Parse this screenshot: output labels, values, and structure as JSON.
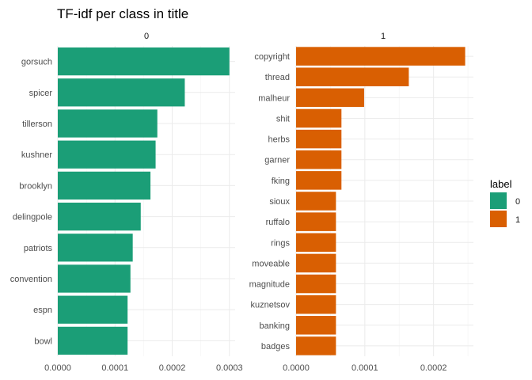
{
  "chart_data": {
    "type": "bar",
    "orientation": "horizontal",
    "title": "TF-idf per class in title",
    "legend": {
      "title": "label",
      "placement": "right",
      "entries": [
        {
          "label": "0",
          "color": "#1b9e77"
        },
        {
          "label": "1",
          "color": "#d95f02"
        }
      ]
    },
    "facets": [
      {
        "strip_label": "0",
        "color": "#1b9e77",
        "xlim": [
          0,
          0.00031
        ],
        "x_ticks": [
          0,
          0.0001,
          0.0002,
          0.0003
        ],
        "x_tick_labels": [
          "0.0000",
          "0.0001",
          "0.0002",
          "0.0003"
        ],
        "categories": [
          "gorsuch",
          "spicer",
          "tillerson",
          "kushner",
          "brooklyn",
          "delingpole",
          "patriots",
          "convention",
          "espn",
          "bowl"
        ],
        "values": [
          0.0003,
          0.000222,
          0.000174,
          0.000171,
          0.000162,
          0.000145,
          0.000131,
          0.000127,
          0.000122,
          0.000122
        ]
      },
      {
        "strip_label": "1",
        "color": "#d95f02",
        "xlim": [
          0,
          0.000258
        ],
        "x_ticks": [
          0,
          0.0001,
          0.0002
        ],
        "x_tick_labels": [
          "0.0000",
          "0.0001",
          "0.0002"
        ],
        "categories": [
          "copyright",
          "thread",
          "malheur",
          "shit",
          "herbs",
          "garner",
          "fking",
          "sioux",
          "ruffalo",
          "rings",
          "moveable",
          "magnitude",
          "kuznetsov",
          "banking",
          "badges"
        ],
        "values": [
          0.000246,
          0.000164,
          9.9e-05,
          6.6e-05,
          6.6e-05,
          6.6e-05,
          6.6e-05,
          5.8e-05,
          5.8e-05,
          5.8e-05,
          5.8e-05,
          5.8e-05,
          5.8e-05,
          5.8e-05,
          5.8e-05
        ]
      }
    ]
  }
}
